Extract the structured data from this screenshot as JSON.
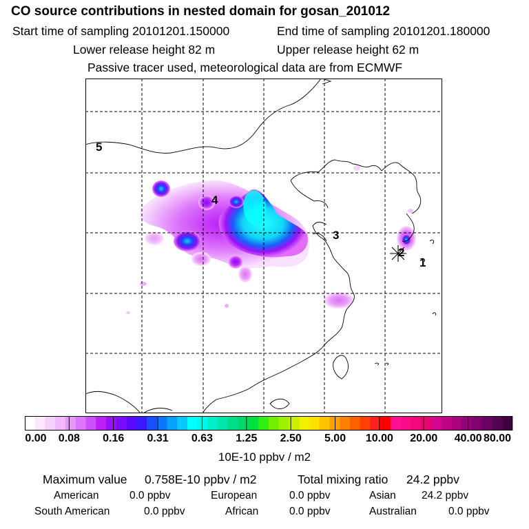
{
  "title": "CO  source contributions in nested domain for gosan_201012",
  "sampling": {
    "start": "Start time of sampling 20101201.150000",
    "end": "End time of sampling 20101201.180000"
  },
  "release": {
    "lower": "Lower release height   82 m",
    "upper": "Upper release height   62 m"
  },
  "note": "Passive tracer used, meteorological data are from ECMWF",
  "map_labels": [
    "1",
    "2",
    "3",
    "4",
    "5"
  ],
  "colorbar": {
    "ticks": [
      "0.00",
      "0.08",
      "0.16",
      "0.31",
      "0.63",
      "1.25",
      "2.50",
      "5.00",
      "10.00",
      "20.00",
      "40.00",
      "80.00"
    ],
    "colors": [
      "#ffffff",
      "#fbe8fe",
      "#f7d0fd",
      "#f1b8fc",
      "#e898fb",
      "#dd78fa",
      "#cf4ff9",
      "#c020f8",
      "#9a10f9",
      "#7a0cfa",
      "#5a0afb",
      "#3a18fc",
      "#1850fd",
      "#0a78fd",
      "#0aa0fe",
      "#08c8fe",
      "#00ffff",
      "#00f6e6",
      "#00eec8",
      "#00e6aa",
      "#00de88",
      "#00d86a",
      "#00e040",
      "#30f010",
      "#70f000",
      "#a0f000",
      "#c8f000",
      "#f0f000",
      "#ffe000",
      "#ffc400",
      "#ffa000",
      "#ff8000",
      "#ff6000",
      "#ff4000",
      "#ff2020",
      "#ff0000",
      "#ff1090",
      "#fa0a86",
      "#f0087c",
      "#e60672",
      "#d40690",
      "#c00488",
      "#aa0480",
      "#940478",
      "#800470",
      "#6a0460",
      "#540450",
      "#400040"
    ],
    "unit": "10E-10 ppbv / m2"
  },
  "stats": {
    "max_label": "Maximum value",
    "max_value": "0.758E-10 ppbv / m2",
    "total_label": "Total mixing ratio",
    "total_value": "24.2 ppbv",
    "regions": [
      {
        "name": "American",
        "value": "0.0 ppbv"
      },
      {
        "name": "European",
        "value": "0.0 ppbv"
      },
      {
        "name": "Asian",
        "value": "24.2 ppbv"
      },
      {
        "name": "South American",
        "value": "0.0 ppbv"
      },
      {
        "name": "African",
        "value": "0.0 ppbv"
      },
      {
        "name": "Australian",
        "value": "0.0 ppbv"
      }
    ]
  }
}
